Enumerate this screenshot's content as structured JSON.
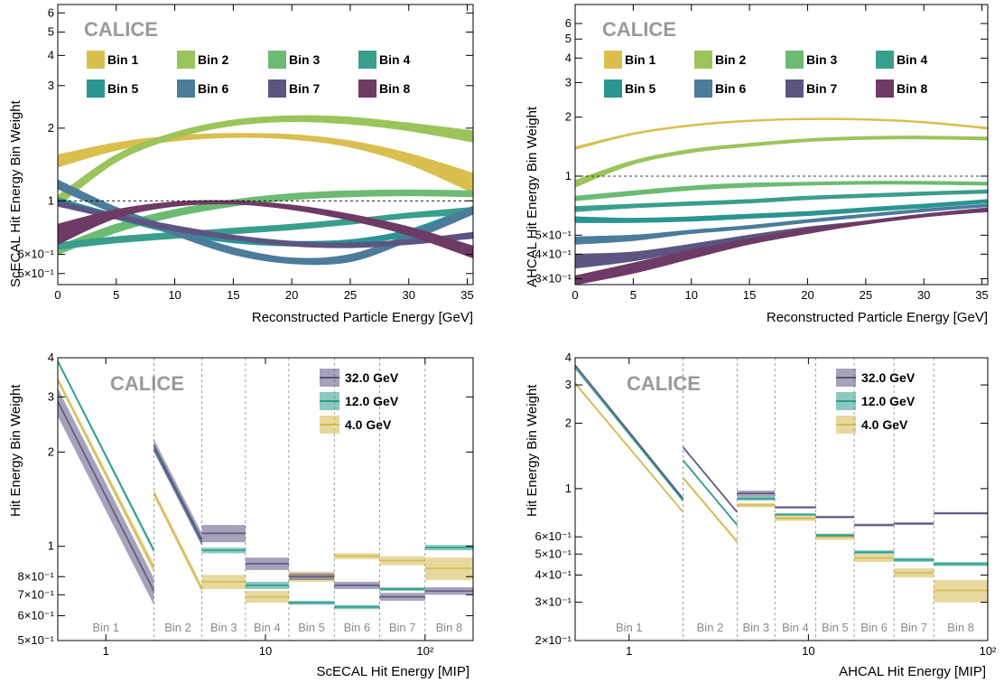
{
  "panels": {
    "tl": {
      "calice": "CALICE",
      "ylabel": "ScECAL Hit Energy Bin Weight",
      "xlabel": "Reconstructed Particle Energy [GeV]"
    },
    "tr": {
      "calice": "CALICE",
      "ylabel": "AHCAL Hit Energy Bin Weight",
      "xlabel": "Reconstructed Particle Energy [GeV]"
    },
    "bl": {
      "calice": "CALICE",
      "ylabel": "Hit Energy Bin Weight",
      "xlabel": "ScECAL Hit Energy [MIP]"
    },
    "br": {
      "calice": "CALICE",
      "ylabel": "Hit Energy Bin Weight",
      "xlabel": "AHCAL Hit Energy [MIP]"
    }
  },
  "chart_data": [
    {
      "id": "tl",
      "type": "line",
      "title": "",
      "xlabel": "Reconstructed Particle Energy [GeV]",
      "ylabel": "ScECAL Hit Energy Bin Weight",
      "xlim": [
        0,
        35.5
      ],
      "ylim": [
        0.45,
        6.5
      ],
      "yscale": "log",
      "x_ticks": [
        0,
        5,
        10,
        15,
        20,
        25,
        30,
        35
      ],
      "x_tick_labels": [
        "0",
        "5",
        "10",
        "15",
        "20",
        "25",
        "30",
        "35"
      ],
      "y_ticks": [
        0.5,
        0.6,
        1,
        2,
        3,
        4,
        5,
        6
      ],
      "y_tick_labels": [
        "5×10⁻¹",
        "6×10⁻¹",
        "1",
        "2",
        "3",
        "4",
        "5",
        "6"
      ],
      "reference_line": 1,
      "legend_position": "top",
      "x": [
        0,
        5,
        10,
        15,
        20,
        25,
        30,
        35.5
      ],
      "series": [
        {
          "name": "Bin 1",
          "color": "#d9bf4e",
          "lower": [
            1.38,
            1.62,
            1.77,
            1.83,
            1.8,
            1.67,
            1.42,
            1.08
          ],
          "upper": [
            1.55,
            1.74,
            1.86,
            1.9,
            1.88,
            1.77,
            1.57,
            1.3
          ]
        },
        {
          "name": "Bin 2",
          "color": "#9bc45a",
          "lower": [
            0.95,
            1.45,
            1.82,
            2.05,
            2.13,
            2.08,
            1.95,
            1.75
          ],
          "upper": [
            1.05,
            1.55,
            1.92,
            2.16,
            2.25,
            2.22,
            2.1,
            1.95
          ]
        },
        {
          "name": "Bin 3",
          "color": "#6dbb73",
          "lower": [
            0.6,
            0.74,
            0.86,
            0.95,
            1.01,
            1.04,
            1.05,
            1.04
          ],
          "upper": [
            0.65,
            0.8,
            0.92,
            1.01,
            1.07,
            1.1,
            1.11,
            1.1
          ]
        },
        {
          "name": "Bin 4",
          "color": "#3a9e8c",
          "lower": [
            0.63,
            0.67,
            0.7,
            0.73,
            0.76,
            0.8,
            0.85,
            0.88
          ],
          "upper": [
            0.67,
            0.71,
            0.74,
            0.77,
            0.8,
            0.84,
            0.89,
            0.94
          ]
        },
        {
          "name": "Bin 5",
          "color": "#2b9591",
          "lower": [
            0.98,
            0.84,
            0.73,
            0.67,
            0.65,
            0.66,
            0.72,
            0.9
          ],
          "upper": [
            1.03,
            0.88,
            0.77,
            0.7,
            0.68,
            0.69,
            0.76,
            0.95
          ]
        },
        {
          "name": "Bin 6",
          "color": "#4c7b9b",
          "lower": [
            1.12,
            0.88,
            0.72,
            0.6,
            0.55,
            0.56,
            0.68,
            0.88
          ],
          "upper": [
            1.22,
            0.94,
            0.77,
            0.64,
            0.58,
            0.6,
            0.73,
            0.95
          ]
        },
        {
          "name": "Bin 7",
          "color": "#5c5582",
          "lower": [
            0.95,
            0.84,
            0.75,
            0.69,
            0.65,
            0.64,
            0.66,
            0.7
          ],
          "upper": [
            1.0,
            0.88,
            0.79,
            0.72,
            0.68,
            0.67,
            0.69,
            0.74
          ]
        },
        {
          "name": "Bin 8",
          "color": "#6e3a66",
          "lower": [
            0.66,
            0.85,
            0.95,
            0.97,
            0.92,
            0.83,
            0.72,
            0.58
          ],
          "upper": [
            0.8,
            0.92,
            0.99,
            1.0,
            0.96,
            0.88,
            0.78,
            0.65
          ]
        }
      ]
    },
    {
      "id": "tr",
      "type": "line",
      "title": "",
      "xlabel": "Reconstructed Particle Energy [GeV]",
      "ylabel": "AHCAL Hit Energy Bin Weight",
      "xlim": [
        0,
        35.5
      ],
      "ylim": [
        0.28,
        7.5
      ],
      "yscale": "log",
      "x_ticks": [
        0,
        5,
        10,
        15,
        20,
        25,
        30,
        35
      ],
      "x_tick_labels": [
        "0",
        "5",
        "10",
        "15",
        "20",
        "25",
        "30",
        "35"
      ],
      "y_ticks": [
        0.3,
        0.4,
        0.5,
        1,
        2,
        3,
        4,
        5,
        6
      ],
      "y_tick_labels": [
        "3×10⁻¹",
        "4×10⁻¹",
        "5×10⁻¹",
        "1",
        "2",
        "3",
        "4",
        "5",
        "6"
      ],
      "reference_line": 1,
      "legend_position": "top",
      "x": [
        0,
        5,
        10,
        15,
        20,
        25,
        30,
        35.5
      ],
      "series": [
        {
          "name": "Bin 1",
          "color": "#d9bf4e",
          "lower": [
            1.37,
            1.63,
            1.8,
            1.9,
            1.94,
            1.93,
            1.87,
            1.74
          ],
          "upper": [
            1.41,
            1.66,
            1.83,
            1.93,
            1.97,
            1.96,
            1.9,
            1.77
          ]
        },
        {
          "name": "Bin 2",
          "color": "#9bc45a",
          "lower": [
            0.88,
            1.15,
            1.32,
            1.42,
            1.5,
            1.54,
            1.55,
            1.53
          ],
          "upper": [
            0.95,
            1.2,
            1.37,
            1.47,
            1.55,
            1.59,
            1.6,
            1.58
          ]
        },
        {
          "name": "Bin 3",
          "color": "#6dbb73",
          "lower": [
            0.75,
            0.8,
            0.85,
            0.88,
            0.9,
            0.91,
            0.91,
            0.9
          ],
          "upper": [
            0.79,
            0.84,
            0.89,
            0.92,
            0.93,
            0.94,
            0.94,
            0.93
          ]
        },
        {
          "name": "Bin 4",
          "color": "#3a9e8c",
          "lower": [
            0.66,
            0.69,
            0.71,
            0.73,
            0.76,
            0.78,
            0.8,
            0.82
          ],
          "upper": [
            0.7,
            0.72,
            0.74,
            0.76,
            0.79,
            0.81,
            0.83,
            0.85
          ]
        },
        {
          "name": "Bin 5",
          "color": "#2b9591",
          "lower": [
            0.58,
            0.58,
            0.59,
            0.61,
            0.63,
            0.66,
            0.69,
            0.73
          ],
          "upper": [
            0.62,
            0.61,
            0.62,
            0.64,
            0.66,
            0.69,
            0.72,
            0.76
          ]
        },
        {
          "name": "Bin 6",
          "color": "#4c7b9b",
          "lower": [
            0.45,
            0.47,
            0.51,
            0.54,
            0.58,
            0.62,
            0.66,
            0.7
          ],
          "upper": [
            0.49,
            0.5,
            0.53,
            0.56,
            0.6,
            0.64,
            0.68,
            0.72
          ]
        },
        {
          "name": "Bin 7",
          "color": "#5c5582",
          "lower": [
            0.34,
            0.37,
            0.42,
            0.47,
            0.52,
            0.57,
            0.62,
            0.67
          ],
          "upper": [
            0.4,
            0.41,
            0.45,
            0.5,
            0.55,
            0.59,
            0.64,
            0.69
          ]
        },
        {
          "name": "Bin 8",
          "color": "#6e3a66",
          "lower": [
            0.28,
            0.32,
            0.38,
            0.45,
            0.51,
            0.57,
            0.62,
            0.66
          ],
          "upper": [
            0.31,
            0.36,
            0.42,
            0.48,
            0.54,
            0.59,
            0.64,
            0.68
          ]
        }
      ]
    },
    {
      "id": "bl",
      "type": "line",
      "title": "",
      "xlabel": "ScECAL Hit Energy [MIP]",
      "ylabel": "Hit Energy Bin Weight",
      "xlim": [
        0.5,
        200
      ],
      "ylim": [
        0.5,
        4
      ],
      "xscale": "log",
      "yscale": "log",
      "x_ticks": [
        1,
        10,
        100
      ],
      "x_tick_labels": [
        "1",
        "10",
        "10²"
      ],
      "y_ticks": [
        0.5,
        0.6,
        0.7,
        0.8,
        1,
        2,
        3,
        4
      ],
      "y_tick_labels": [
        "5×10⁻¹",
        "6×10⁻¹",
        "7×10⁻¹",
        "8×10⁻¹",
        "1",
        "2",
        "3",
        "4"
      ],
      "legend_position": "top-right",
      "bin_edges": [
        0.5,
        2,
        4,
        7.5,
        14,
        27,
        52,
        100,
        200
      ],
      "bin_labels": [
        "Bin 1",
        "Bin 2",
        "Bin 3",
        "Bin 4",
        "Bin 5",
        "Bin 6",
        "Bin 7",
        "Bin 8"
      ],
      "series": [
        {
          "name": "32.0 GeV",
          "color": "#5c5582",
          "ramp": [
            [
              0.5,
              2.9,
              0.3
            ],
            [
              2,
              0.72,
              0.07
            ]
          ],
          "ramp2": [
            [
              2,
              2.1,
              0.1
            ],
            [
              4,
              1.05,
              0.05
            ]
          ],
          "steps": [
            [
              1.1,
              0.07
            ],
            [
              0.88,
              0.04
            ],
            [
              0.8,
              0.02
            ],
            [
              0.75,
              0.02
            ],
            [
              0.69,
              0.02
            ],
            [
              0.72,
              0.02
            ]
          ]
        },
        {
          "name": "12.0 GeV",
          "color": "#2b9d8a",
          "ramp": [
            [
              0.5,
              3.9,
              0.06
            ],
            [
              2,
              0.97,
              0.02
            ]
          ],
          "ramp2": [
            [
              2,
              2.05,
              0.03
            ],
            [
              4,
              1.03,
              0.02
            ]
          ],
          "steps": [
            [
              0.97,
              0.02
            ],
            [
              0.75,
              0.02
            ],
            [
              0.66,
              0.01
            ],
            [
              0.64,
              0.01
            ],
            [
              0.73,
              0.01
            ],
            [
              0.99,
              0.02
            ]
          ]
        },
        {
          "name": "4.0 GeV",
          "color": "#d4b94e",
          "ramp": [
            [
              0.5,
              3.4,
              0.07
            ],
            [
              2,
              0.85,
              0.03
            ]
          ],
          "ramp2": [
            [
              2,
              1.48,
              0.04
            ],
            [
              4,
              0.73,
              0.02
            ]
          ],
          "steps": [
            [
              0.77,
              0.04
            ],
            [
              0.69,
              0.03
            ],
            [
              0.8,
              0.03
            ],
            [
              0.93,
              0.02
            ],
            [
              0.9,
              0.03
            ],
            [
              0.85,
              0.07
            ]
          ]
        }
      ]
    },
    {
      "id": "br",
      "type": "line",
      "title": "",
      "xlabel": "AHCAL Hit Energy [MIP]",
      "ylabel": "Hit Energy Bin Weight",
      "xlim": [
        0.5,
        100
      ],
      "ylim": [
        0.2,
        4
      ],
      "xscale": "log",
      "yscale": "log",
      "x_ticks": [
        1,
        10,
        100
      ],
      "x_tick_labels": [
        "1",
        "10",
        "10²"
      ],
      "y_ticks": [
        0.2,
        0.3,
        0.4,
        0.5,
        0.6,
        1,
        2,
        3,
        4
      ],
      "y_tick_labels": [
        "2×10⁻¹",
        "3×10⁻¹",
        "4×10⁻¹",
        "5×10⁻¹",
        "6×10⁻¹",
        "1",
        "2",
        "3",
        "4"
      ],
      "legend_position": "top-right",
      "bin_edges": [
        0.5,
        2,
        4,
        6.5,
        11,
        18,
        30,
        50,
        100
      ],
      "bin_labels": [
        "Bin 1",
        "Bin 2",
        "Bin 3",
        "Bin 4",
        "Bin 5",
        "Bin 6",
        "Bin 7",
        "Bin 8"
      ],
      "series": [
        {
          "name": "32.0 GeV",
          "color": "#5c5582",
          "ramp": [
            [
              0.5,
              3.7,
              0.04
            ],
            [
              2,
              0.9,
              0.01
            ]
          ],
          "ramp2": [
            [
              2,
              1.55,
              0.02
            ],
            [
              4,
              0.78,
              0.01
            ]
          ],
          "steps": [
            [
              0.95,
              0.03
            ],
            [
              0.82,
              0.01
            ],
            [
              0.74,
              0.01
            ],
            [
              0.68,
              0.01
            ],
            [
              0.69,
              0.01
            ],
            [
              0.77,
              0.01
            ]
          ]
        },
        {
          "name": "12.0 GeV",
          "color": "#2b9d8a",
          "ramp": [
            [
              0.5,
              3.6,
              0.03
            ],
            [
              2,
              0.88,
              0.01
            ]
          ],
          "ramp2": [
            [
              2,
              1.35,
              0.02
            ],
            [
              4,
              0.68,
              0.01
            ]
          ],
          "steps": [
            [
              0.9,
              0.02
            ],
            [
              0.76,
              0.01
            ],
            [
              0.61,
              0.01
            ],
            [
              0.51,
              0.01
            ],
            [
              0.47,
              0.01
            ],
            [
              0.45,
              0.01
            ]
          ]
        },
        {
          "name": "4.0 GeV",
          "color": "#d4b94e",
          "ramp": [
            [
              0.5,
              3.05,
              0.05
            ],
            [
              2,
              0.78,
              0.01
            ]
          ],
          "ramp2": [
            [
              2,
              1.12,
              0.02
            ],
            [
              4,
              0.57,
              0.01
            ]
          ],
          "steps": [
            [
              0.84,
              0.02
            ],
            [
              0.73,
              0.02
            ],
            [
              0.6,
              0.02
            ],
            [
              0.48,
              0.02
            ],
            [
              0.41,
              0.02
            ],
            [
              0.34,
              0.04
            ]
          ]
        }
      ]
    }
  ]
}
